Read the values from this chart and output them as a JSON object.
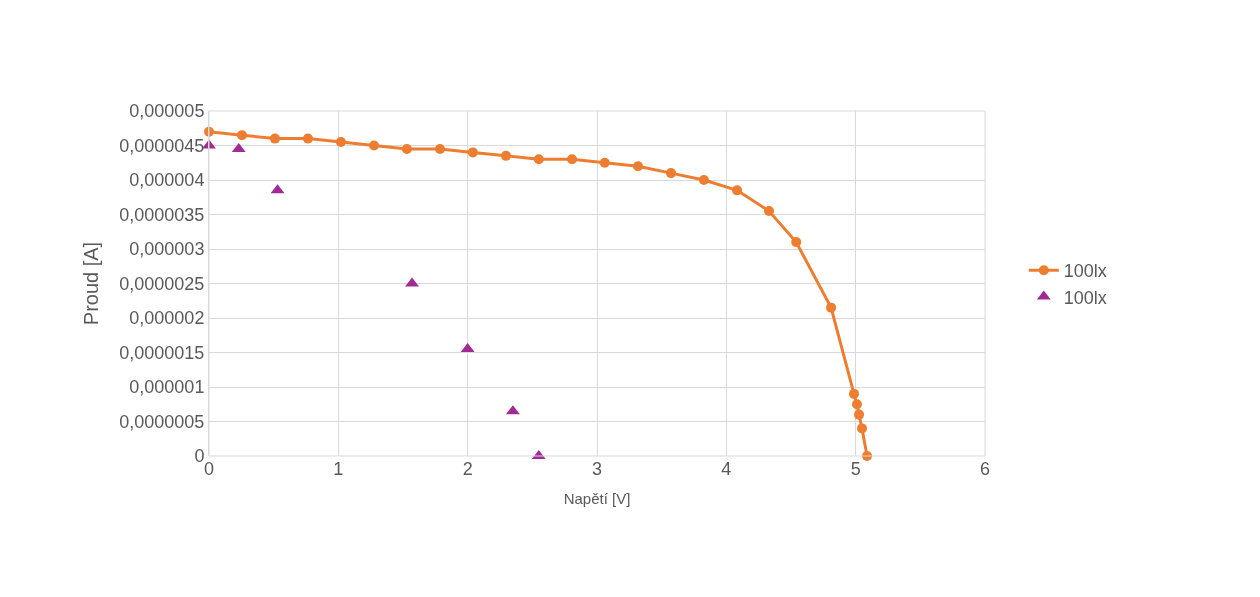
{
  "chart_data": {
    "type": "scatter",
    "xlabel": "Napětí [V]",
    "ylabel": "Proud [A]",
    "xlim": [
      0,
      6
    ],
    "xticks": [
      0,
      1,
      2,
      3,
      4,
      5,
      6
    ],
    "ylim": [
      0,
      5e-06
    ],
    "yticks": [
      0,
      {
        "value": 5e-07,
        "label": "0,0000005"
      },
      {
        "value": 1e-06,
        "label": "0,000001"
      },
      {
        "value": 1.5e-06,
        "label": "0,0000015"
      },
      {
        "value": 2e-06,
        "label": "0,000002"
      },
      {
        "value": 2.5e-06,
        "label": "0,0000025"
      },
      {
        "value": 3e-06,
        "label": "0,000003"
      },
      {
        "value": 3.5e-06,
        "label": "0,0000035"
      },
      {
        "value": 4e-06,
        "label": "0,000004"
      },
      {
        "value": 4.5e-06,
        "label": "0,0000045"
      },
      {
        "value": 5e-06,
        "label": "0,000005"
      }
    ],
    "grid": true,
    "legend": "right",
    "series": [
      {
        "name": "100lx",
        "type": "line",
        "marker": "circle",
        "color": "#ed7d31",
        "x": [
          0,
          0.255,
          0.51,
          0.765,
          1.02,
          1.276,
          1.53,
          1.786,
          2.04,
          2.296,
          2.55,
          2.807,
          3.06,
          3.317,
          3.572,
          3.827,
          4.083,
          4.33,
          4.54,
          4.81,
          4.987,
          5.01,
          5.026,
          5.049,
          5.088
        ],
        "values": [
          4.7e-06,
          4.65e-06,
          4.6e-06,
          4.6e-06,
          4.55e-06,
          4.5e-06,
          4.45e-06,
          4.45e-06,
          4.4e-06,
          4.35e-06,
          4.3e-06,
          4.3e-06,
          4.25e-06,
          4.2e-06,
          4.1e-06,
          4e-06,
          3.85e-06,
          3.55e-06,
          3.1e-06,
          2.15e-06,
          9e-07,
          7.5e-07,
          6e-07,
          4e-07,
          0
        ]
      },
      {
        "name": "100lx",
        "marker": "triangle",
        "color": "#a02b93",
        "x": [
          0,
          0.23,
          0.53,
          1.57,
          2,
          2.35,
          2.55
        ],
        "values": [
          4.5e-06,
          4.45e-06,
          3.85e-06,
          2.5e-06,
          1.55e-06,
          6.5e-07,
          0
        ]
      }
    ]
  }
}
